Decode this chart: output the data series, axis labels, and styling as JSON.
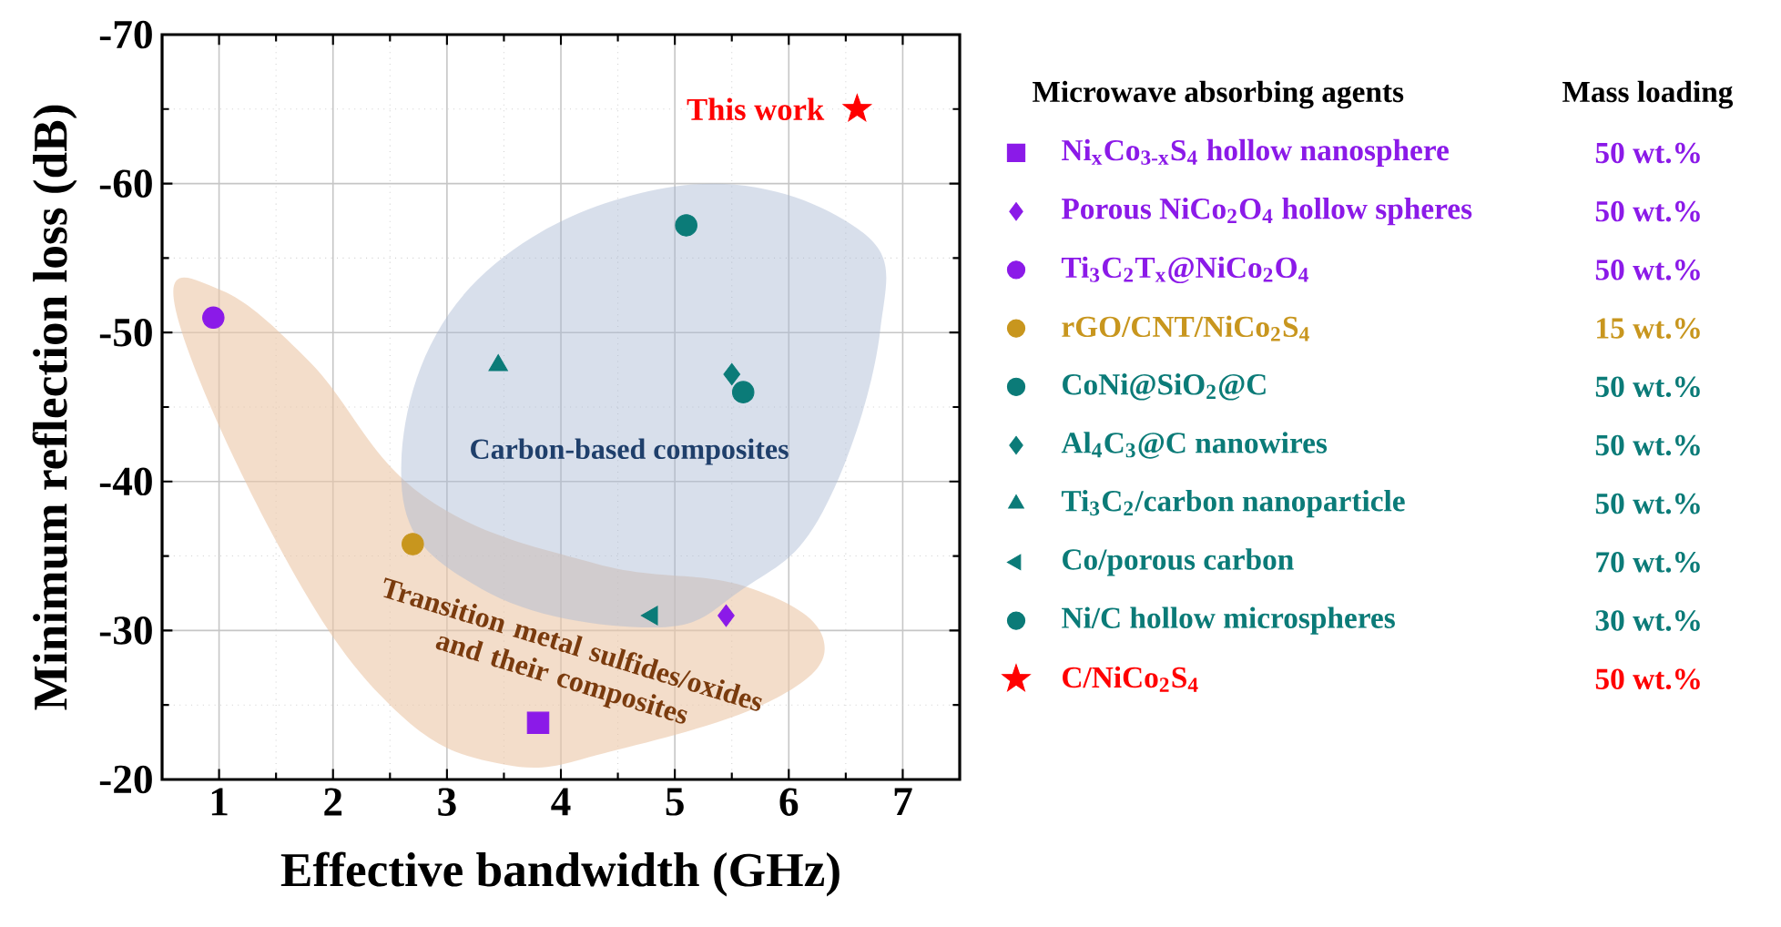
{
  "chart_data": {
    "type": "scatter",
    "xlabel": "Effective bandwidth (GHz)",
    "ylabel": "Minimum reflection loss (dB)",
    "legend_title": "Microwave absorbing agents",
    "xlim": [
      0.5,
      7.5
    ],
    "xticks": [
      1,
      2,
      3,
      4,
      5,
      6,
      7
    ],
    "ylim": [
      -20,
      -70
    ],
    "yticks": [
      -70,
      -60,
      -50,
      -40,
      -30,
      -20
    ],
    "grid": true,
    "legend": "right",
    "series": [
      {
        "name": "Ni$_{x}$Co$_{3-x}$S$_{4}$ hollow nanosphere",
        "color": "#8b1ae8",
        "marker": "square",
        "x": [
          3.8
        ],
        "values": [
          -23.8
        ]
      },
      {
        "name": "Porous NiCo$_{2}$O$_{4}$ hollow spheres",
        "color": "#8b1ae8",
        "marker": "diamond",
        "x": [
          5.45
        ],
        "values": [
          -31
        ]
      },
      {
        "name": "Ti$_{3}$C$_{2}$T$_{x}$@NiCo$_{2}$O$_{4}$",
        "color": "#8b1ae8",
        "marker": "circle",
        "x": [
          0.95
        ],
        "values": [
          -51
        ]
      },
      {
        "name": "rGO/CNT/NiCo$_{2}$S$_{4}$",
        "color": "#c8961e",
        "marker": "circle",
        "x": [
          2.7
        ],
        "values": [
          -35.8
        ]
      },
      {
        "name": "CoNi@SiO$_{2}$@C",
        "color": "#0b7b78",
        "marker": "circle",
        "x": [
          5.6
        ],
        "values": [
          -46
        ]
      },
      {
        "name": "Al$_{4}$C$_{3}$@C nanowires",
        "color": "#0b7b78",
        "marker": "diamond",
        "x": [
          5.5
        ],
        "values": [
          -47.2
        ]
      },
      {
        "name": "Ti$_{3}$C$_{2}$/carbon nanoparticle",
        "color": "#0b7b78",
        "marker": "triangle",
        "x": [
          3.45
        ],
        "values": [
          -47.8
        ]
      },
      {
        "name": "Co/porous carbon",
        "color": "#0b7b78",
        "marker": "triangle-left",
        "x": [
          4.8
        ],
        "values": [
          -31
        ]
      },
      {
        "name": "Ni/C hollow microspheres",
        "color": "#0b7b78",
        "marker": "circle",
        "x": [
          5.1
        ],
        "values": [
          -57.2
        ]
      },
      {
        "name": "C/NiCo$_{2}$S$_{4}$",
        "color": "#ff0000",
        "marker": "star",
        "x": [
          6.6
        ],
        "values": [
          -65
        ]
      }
    ],
    "annotations": [
      {
        "text": "This work",
        "x": 6.6,
        "y": -65
      },
      "Carbon-based composites",
      "Transition metal sulfides/oxides and their composites",
      "Mass loading",
      "50 wt.%",
      "50 wt.%",
      "50 wt.%",
      "15 wt.%",
      "50 wt.%",
      "50 wt.%",
      "50 wt.%",
      "70 wt.%",
      "30 wt.%",
      "50 wt.%"
    ]
  }
}
